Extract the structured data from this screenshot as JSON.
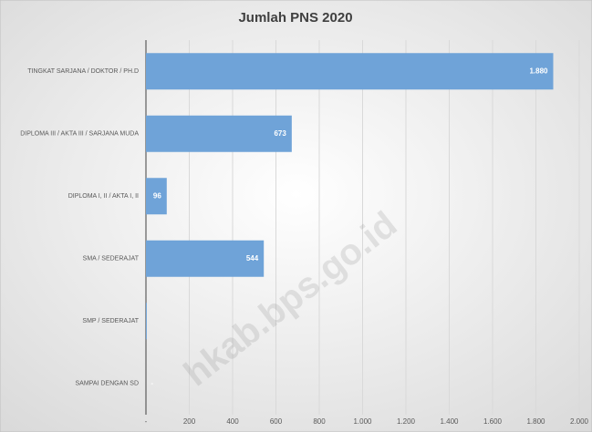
{
  "chart_data": {
    "type": "bar",
    "orientation": "horizontal",
    "title": "Jumlah PNS 2020",
    "categories": [
      "TINGKAT SARJANA / DOKTOR / PH.D",
      "DIPLOMA III / AKTA III / SARJANA MUDA",
      "DIPLOMA I, II / AKTA I, II",
      "SMA / SEDERAJAT",
      "SMP / SEDERAJAT",
      "SAMPAI DENGAN SD"
    ],
    "values": [
      1880,
      673,
      96,
      544,
      4,
      0
    ],
    "value_labels": [
      "1.880",
      "673",
      "96",
      "544",
      null,
      "-"
    ],
    "color": "#6fa3d8",
    "xlim": [
      0,
      2000
    ],
    "xticks": [
      {
        "value": 0,
        "label": "-"
      },
      200,
      400,
      600,
      800,
      {
        "value": 1000,
        "label": "1.000"
      },
      {
        "value": 1200,
        "label": "1.200"
      },
      {
        "value": 1400,
        "label": "1.400"
      },
      {
        "value": 1600,
        "label": "1.600"
      },
      {
        "value": 1800,
        "label": "1.800"
      },
      {
        "value": 2000,
        "label": "2.000"
      }
    ],
    "grid": true,
    "annotations": [
      "hkab.bps.go.id"
    ]
  }
}
